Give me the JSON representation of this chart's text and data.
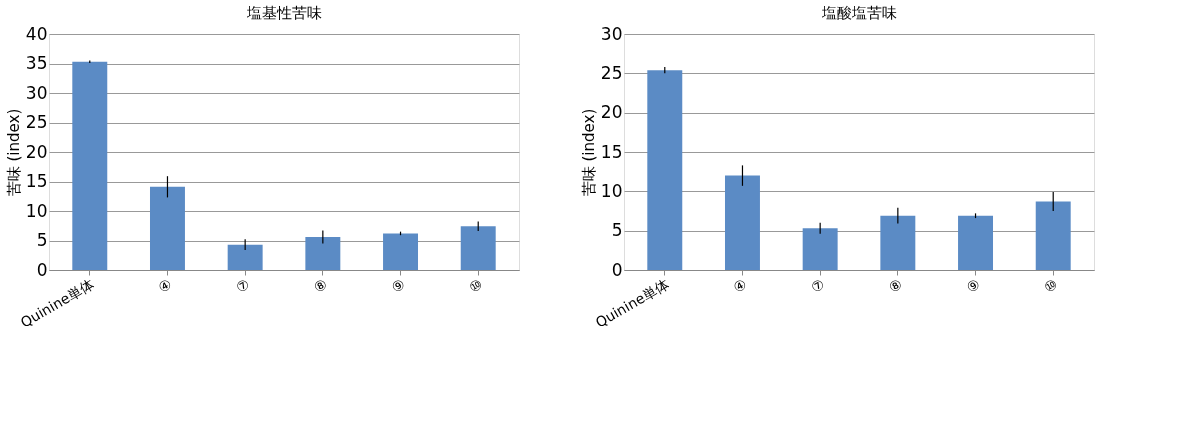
{
  "chart_data": [
    {
      "type": "bar",
      "title": "塩基性苦味",
      "ylabel": "苦味 (index)",
      "categories": [
        "Quinine単体",
        "④",
        "⑦",
        "⑧",
        "⑨",
        "⑩"
      ],
      "series": [
        {
          "color": "#5b8bc5",
          "values": [
            35.3,
            14.1,
            4.3,
            5.6,
            6.2,
            7.4
          ],
          "errors": [
            0.2,
            1.8,
            0.9,
            1.1,
            0.3,
            0.8
          ]
        }
      ],
      "ylim": [
        0,
        40
      ],
      "yticks": [
        0,
        5,
        10,
        15,
        20,
        25,
        30,
        35,
        40
      ],
      "grid": "y"
    },
    {
      "type": "bar",
      "title": "塩酸塩苦味",
      "ylabel": "苦味 (index)",
      "categories": [
        "Quinine単体",
        "④",
        "⑦",
        "⑧",
        "⑨",
        "⑩"
      ],
      "series": [
        {
          "color": "#5b8bc5",
          "values": [
            25.4,
            12.0,
            5.3,
            6.9,
            6.9,
            8.7
          ],
          "errors": [
            0.4,
            1.3,
            0.7,
            1.0,
            0.3,
            1.2
          ]
        }
      ],
      "ylim": [
        0,
        30
      ],
      "yticks": [
        0,
        5,
        10,
        15,
        20,
        25,
        30
      ],
      "grid": "y"
    }
  ]
}
